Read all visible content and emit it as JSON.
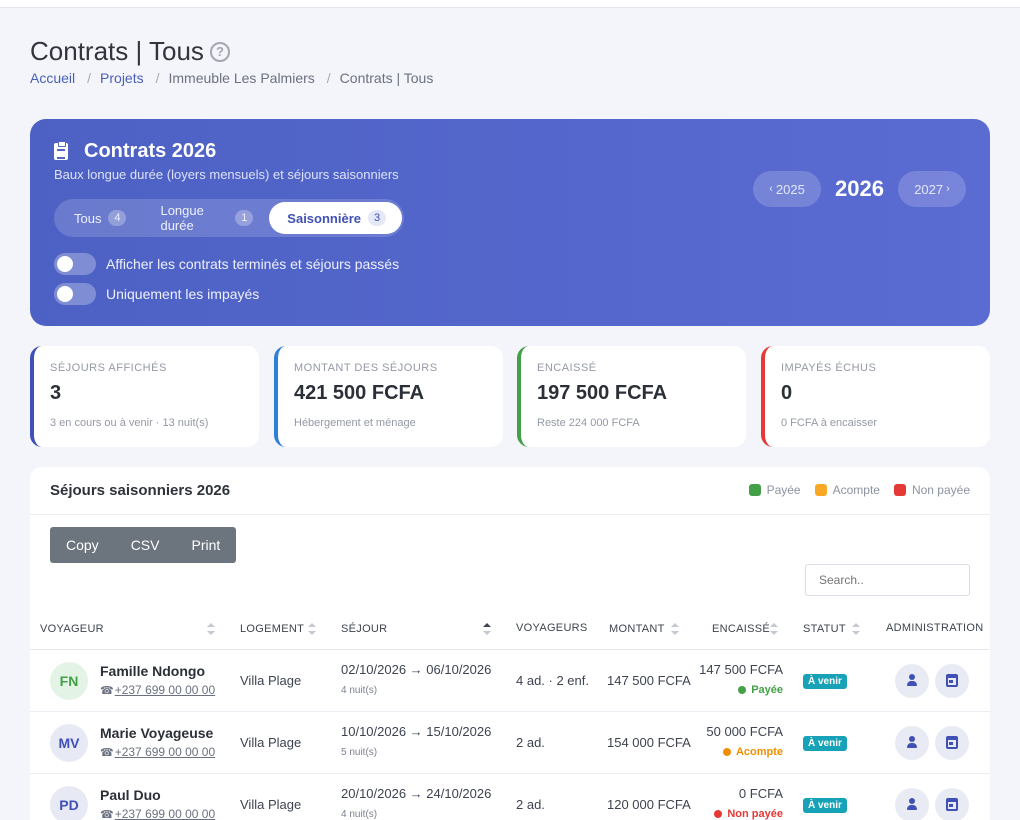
{
  "page": {
    "title": "Contrats | Tous",
    "breadcrumb": [
      "Accueil",
      "Projets",
      "Immeuble Les Palmiers",
      "Contrats | Tous"
    ]
  },
  "hero": {
    "title": "Contrats 2026",
    "subtitle": "Baux longue durée (loyers mensuels) et séjours saisonniers",
    "tabs": [
      {
        "label": "Tous",
        "count": "4"
      },
      {
        "label": "Longue durée",
        "count": "1"
      },
      {
        "label": "Saisonnière",
        "count": "3",
        "active": true
      }
    ],
    "toggles": [
      {
        "label": "Afficher les contrats terminés et séjours passés",
        "on": false
      },
      {
        "label": "Uniquement les impayés",
        "on": false
      }
    ],
    "year_prev": "2025",
    "year_current": "2026",
    "year_next": "2027"
  },
  "stats": [
    {
      "label": "SÉJOURS AFFICHÉS",
      "value": "3",
      "note": "3 en cours ou à venir · 13 nuit(s)",
      "color": "#3f51b5"
    },
    {
      "label": "MONTANT DES SÉJOURS",
      "value": "421 500 FCFA",
      "note": "Hébergement et ménage",
      "color": "#2f7fd6"
    },
    {
      "label": "ENCAISSÉ",
      "value": "197 500 FCFA",
      "note": "Reste 224 000 FCFA",
      "color": "#43a047"
    },
    {
      "label": "IMPAYÉS ÉCHUS",
      "value": "0",
      "note": "0 FCFA à encaisser",
      "color": "#e53935"
    }
  ],
  "table_card": {
    "title": "Séjours saisonniers 2026",
    "legend": [
      {
        "label": "Payée",
        "color": "#43a047"
      },
      {
        "label": "Acompte",
        "color": "#f9a825"
      },
      {
        "label": "Non payée",
        "color": "#e53935"
      }
    ],
    "buttons": [
      "Copy",
      "CSV",
      "Print"
    ],
    "search_placeholder": "Search..",
    "columns": [
      "VOYAGEUR",
      "LOGEMENT",
      "SÉJOUR",
      "VOYAGEURS",
      "MONTANT",
      "ENCAISSÉ",
      "STATUT",
      "ADMINISTRATION"
    ],
    "rows": [
      {
        "initials": "FN",
        "avatar_bg": "#e3f3e6",
        "avatar_color": "#43a047",
        "name": "Famille Ndongo",
        "phone": "+237 699 00 00 00",
        "lodging": "Villa Plage",
        "dates": "02/10/2026 → 06/10/2026",
        "nights": "4 nuit(s)",
        "guests": "4 ad. · 2 enf.",
        "amount": "147 500 FCFA",
        "paid": "147 500 FCFA",
        "pay_status": "Payée",
        "pay_color": "#43a047",
        "status": "À venir"
      },
      {
        "initials": "MV",
        "avatar_bg": "#e7e9f5",
        "avatar_color": "#3f51b5",
        "name": "Marie Voyageuse",
        "phone": "+237 699 00 00 00",
        "lodging": "Villa Plage",
        "dates": "10/10/2026 → 15/10/2026",
        "nights": "5 nuit(s)",
        "guests": "2 ad.",
        "amount": "154 000 FCFA",
        "paid": "50 000 FCFA",
        "pay_status": "Acompte",
        "pay_color": "#ef8f00",
        "status": "À venir"
      },
      {
        "initials": "PD",
        "avatar_bg": "#e7e9f5",
        "avatar_color": "#3f51b5",
        "name": "Paul Duo",
        "phone": "+237 699 00 00 00",
        "lodging": "Villa Plage",
        "dates": "20/10/2026 → 24/10/2026",
        "nights": "4 nuit(s)",
        "guests": "2 ad.",
        "amount": "120 000 FCFA",
        "paid": "0 FCFA",
        "pay_status": "Non payée",
        "pay_color": "#e53935",
        "status": "À venir"
      }
    ]
  }
}
